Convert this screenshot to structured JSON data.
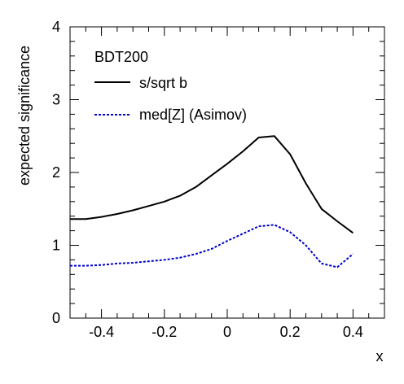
{
  "chart_data": {
    "type": "line",
    "title": "",
    "xlabel": "x",
    "ylabel": "expected significance",
    "xlim": [
      -0.5,
      0.5
    ],
    "ylim": [
      0,
      4
    ],
    "x_ticks": [
      -0.4,
      -0.2,
      0,
      0.2,
      0.4
    ],
    "x_tick_labels": [
      "-0.4",
      "-0.2",
      "0",
      "0.2",
      "0.4"
    ],
    "y_ticks": [
      0,
      1,
      2,
      3,
      4
    ],
    "y_tick_labels": [
      "0",
      "1",
      "2",
      "3",
      "4"
    ],
    "grid": false,
    "legend_title": "BDT200",
    "legend_position": "top-left",
    "series": [
      {
        "name": "s/sqrt b",
        "color": "#000000",
        "style": "solid",
        "x": [
          -0.5,
          -0.45,
          -0.4,
          -0.35,
          -0.3,
          -0.25,
          -0.2,
          -0.15,
          -0.1,
          -0.05,
          0,
          0.05,
          0.1,
          0.15,
          0.2,
          0.25,
          0.3,
          0.35,
          0.4
        ],
        "y": [
          1.36,
          1.36,
          1.39,
          1.43,
          1.48,
          1.54,
          1.6,
          1.68,
          1.8,
          1.96,
          2.12,
          2.29,
          2.48,
          2.5,
          2.25,
          1.85,
          1.5,
          1.33,
          1.17
        ]
      },
      {
        "name": "med[Z] (Asimov)",
        "color": "#0000cc",
        "style": "dotted",
        "x": [
          -0.5,
          -0.45,
          -0.4,
          -0.35,
          -0.3,
          -0.25,
          -0.2,
          -0.15,
          -0.1,
          -0.05,
          0,
          0.05,
          0.1,
          0.15,
          0.2,
          0.25,
          0.3,
          0.35,
          0.4
        ],
        "y": [
          0.72,
          0.72,
          0.73,
          0.75,
          0.76,
          0.78,
          0.8,
          0.83,
          0.88,
          0.95,
          1.06,
          1.16,
          1.26,
          1.28,
          1.18,
          1.0,
          0.75,
          0.7,
          0.88
        ]
      }
    ]
  }
}
